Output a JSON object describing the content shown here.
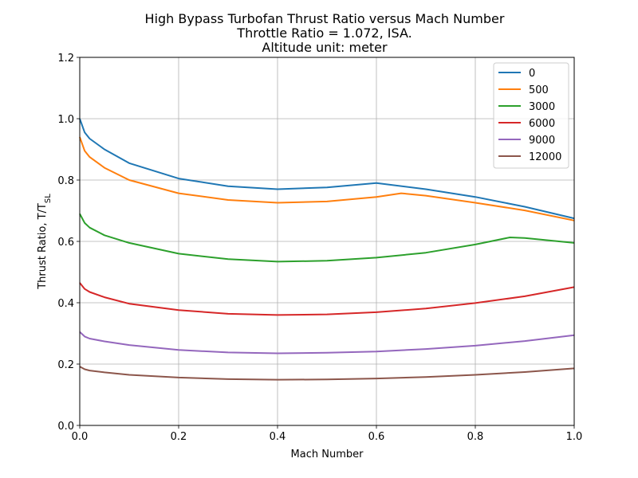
{
  "chart_data": {
    "type": "line",
    "title_lines": [
      "High Bypass Turbofan Thrust Ratio versus Mach Number",
      "Throttle Ratio = 1.072, ISA.",
      "Altitude unit: meter"
    ],
    "xlabel": "Mach Number",
    "ylabel_main": "Thrust Ratio, T/T",
    "ylabel_sub": "SL",
    "xlim": [
      0,
      1.0
    ],
    "ylim": [
      0,
      1.2
    ],
    "xticks": [
      "0.0",
      "0.2",
      "0.4",
      "0.6",
      "0.8",
      "1.0"
    ],
    "yticks": [
      "0.0",
      "0.2",
      "0.4",
      "0.6",
      "0.8",
      "1.0",
      "1.2"
    ],
    "grid": true,
    "legend_position": "top-right",
    "series": [
      {
        "name": "0",
        "color": "#1f77b4",
        "points": [
          [
            0,
            1.0
          ],
          [
            0.01,
            0.955
          ],
          [
            0.02,
            0.935
          ],
          [
            0.05,
            0.9
          ],
          [
            0.1,
            0.855
          ],
          [
            0.2,
            0.805
          ],
          [
            0.3,
            0.78
          ],
          [
            0.4,
            0.77
          ],
          [
            0.5,
            0.776
          ],
          [
            0.6,
            0.79
          ],
          [
            0.7,
            0.77
          ],
          [
            0.8,
            0.745
          ],
          [
            0.9,
            0.713
          ],
          [
            1.0,
            0.675
          ]
        ]
      },
      {
        "name": "500",
        "color": "#ff7f0e",
        "points": [
          [
            0,
            0.94
          ],
          [
            0.01,
            0.895
          ],
          [
            0.02,
            0.875
          ],
          [
            0.05,
            0.84
          ],
          [
            0.1,
            0.8
          ],
          [
            0.2,
            0.757
          ],
          [
            0.3,
            0.735
          ],
          [
            0.4,
            0.726
          ],
          [
            0.5,
            0.73
          ],
          [
            0.6,
            0.745
          ],
          [
            0.65,
            0.757
          ],
          [
            0.7,
            0.749
          ],
          [
            0.8,
            0.726
          ],
          [
            0.9,
            0.701
          ],
          [
            1.0,
            0.668
          ]
        ]
      },
      {
        "name": "3000",
        "color": "#2ca02c",
        "points": [
          [
            0,
            0.69
          ],
          [
            0.01,
            0.66
          ],
          [
            0.02,
            0.645
          ],
          [
            0.05,
            0.62
          ],
          [
            0.1,
            0.595
          ],
          [
            0.2,
            0.56
          ],
          [
            0.3,
            0.542
          ],
          [
            0.4,
            0.534
          ],
          [
            0.5,
            0.537
          ],
          [
            0.6,
            0.547
          ],
          [
            0.7,
            0.563
          ],
          [
            0.8,
            0.59
          ],
          [
            0.87,
            0.613
          ],
          [
            0.9,
            0.611
          ],
          [
            1.0,
            0.595
          ]
        ]
      },
      {
        "name": "6000",
        "color": "#d62728",
        "points": [
          [
            0,
            0.465
          ],
          [
            0.01,
            0.445
          ],
          [
            0.02,
            0.435
          ],
          [
            0.05,
            0.418
          ],
          [
            0.1,
            0.397
          ],
          [
            0.2,
            0.376
          ],
          [
            0.3,
            0.364
          ],
          [
            0.4,
            0.36
          ],
          [
            0.5,
            0.362
          ],
          [
            0.6,
            0.369
          ],
          [
            0.7,
            0.381
          ],
          [
            0.8,
            0.399
          ],
          [
            0.9,
            0.421
          ],
          [
            1.0,
            0.451
          ]
        ]
      },
      {
        "name": "9000",
        "color": "#9467bd",
        "points": [
          [
            0,
            0.305
          ],
          [
            0.01,
            0.29
          ],
          [
            0.02,
            0.283
          ],
          [
            0.05,
            0.274
          ],
          [
            0.1,
            0.262
          ],
          [
            0.2,
            0.246
          ],
          [
            0.3,
            0.238
          ],
          [
            0.4,
            0.235
          ],
          [
            0.5,
            0.237
          ],
          [
            0.6,
            0.241
          ],
          [
            0.7,
            0.249
          ],
          [
            0.8,
            0.26
          ],
          [
            0.9,
            0.275
          ],
          [
            1.0,
            0.294
          ]
        ]
      },
      {
        "name": "12000",
        "color": "#8c564b",
        "points": [
          [
            0,
            0.192
          ],
          [
            0.01,
            0.183
          ],
          [
            0.02,
            0.179
          ],
          [
            0.05,
            0.173
          ],
          [
            0.1,
            0.165
          ],
          [
            0.2,
            0.156
          ],
          [
            0.3,
            0.151
          ],
          [
            0.4,
            0.149
          ],
          [
            0.5,
            0.15
          ],
          [
            0.6,
            0.153
          ],
          [
            0.7,
            0.158
          ],
          [
            0.8,
            0.165
          ],
          [
            0.9,
            0.174
          ],
          [
            1.0,
            0.186
          ]
        ]
      }
    ]
  }
}
